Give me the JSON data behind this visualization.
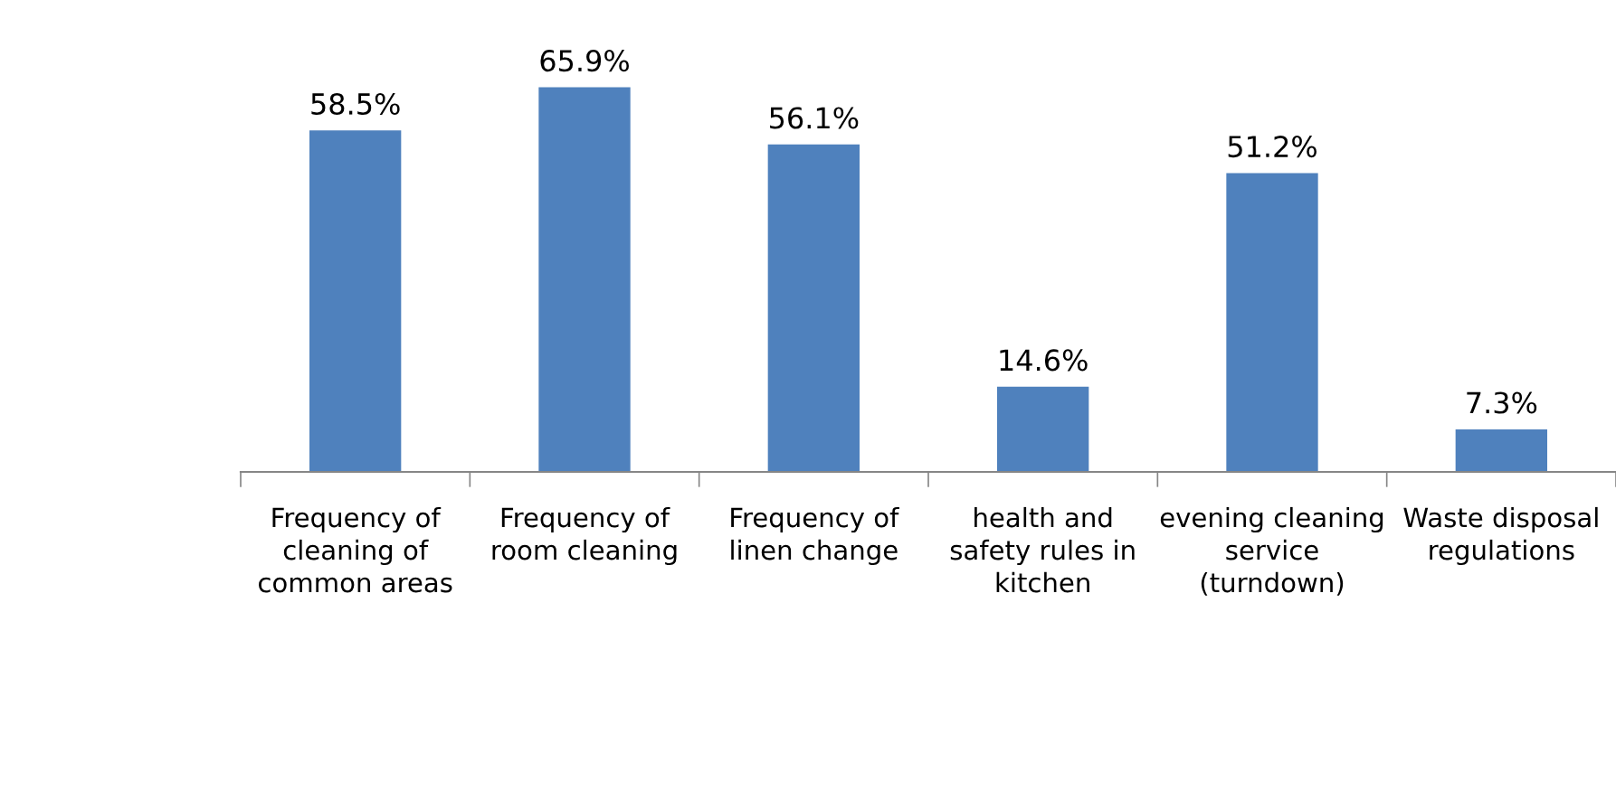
{
  "chart_data": {
    "type": "bar",
    "categories": [
      "Frequency of\ncleaning of\ncommon areas",
      "Frequency of\nroom cleaning",
      "Frequency of\nlinen change",
      "health and\nsafety rules in\nkitchen",
      "evening cleaning\nservice\n(turndown)",
      "Waste disposal\nregulations"
    ],
    "values": [
      58.5,
      65.9,
      56.1,
      14.6,
      51.2,
      7.3
    ],
    "value_labels": [
      "58.5%",
      "65.9%",
      "56.1%",
      "14.6%",
      "51.2%",
      "7.3%"
    ],
    "color": "#4f81bd",
    "grid": false,
    "legend": false
  }
}
